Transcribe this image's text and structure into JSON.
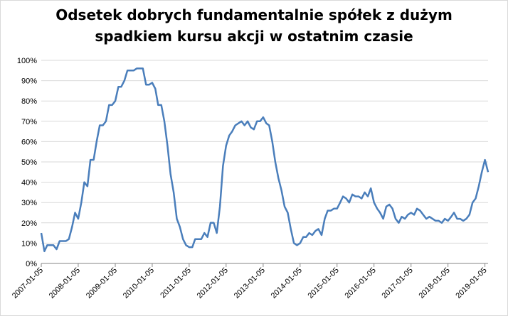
{
  "chart_data": {
    "type": "line",
    "title": [
      "Odsetek dobrych fundamentalnie spółek z dużym",
      "spadkiem kursu akcji w ostatnim czasie"
    ],
    "x": [
      "2007-01-05",
      "2007-02-05",
      "2007-03-05",
      "2007-05-05",
      "2007-06-05",
      "2007-07-05",
      "2007-09-05",
      "2007-10-05",
      "2007-11-05",
      "2007-12-05",
      "2008-01-05",
      "2008-02-05",
      "2008-03-05",
      "2008-04-05",
      "2008-05-05",
      "2008-06-05",
      "2008-07-05",
      "2008-08-05",
      "2008-09-05",
      "2008-10-05",
      "2008-11-05",
      "2008-12-05",
      "2009-01-05",
      "2009-02-05",
      "2009-03-05",
      "2009-04-05",
      "2009-05-05",
      "2009-06-05",
      "2009-07-05",
      "2009-08-05",
      "2009-09-05",
      "2009-10-05",
      "2009-11-05",
      "2009-12-05",
      "2010-01-05",
      "2010-02-05",
      "2010-03-05",
      "2010-04-05",
      "2010-05-05",
      "2010-06-05",
      "2010-07-05",
      "2010-08-05",
      "2010-09-05",
      "2010-10-05",
      "2010-11-05",
      "2010-12-05",
      "2011-01-05",
      "2011-02-05",
      "2011-03-05",
      "2011-04-05",
      "2011-05-05",
      "2011-06-05",
      "2011-07-05",
      "2011-08-05",
      "2011-09-05",
      "2011-10-05",
      "2011-11-05",
      "2011-12-05",
      "2012-01-05",
      "2012-02-05",
      "2012-03-05",
      "2012-04-05",
      "2012-05-05",
      "2012-06-05",
      "2012-07-05",
      "2012-08-05",
      "2012-09-05",
      "2012-10-05",
      "2012-11-05",
      "2012-12-05",
      "2013-01-05",
      "2013-02-05",
      "2013-03-05",
      "2013-04-05",
      "2013-05-05",
      "2013-06-05",
      "2013-07-05",
      "2013-08-05",
      "2013-09-05",
      "2013-10-05",
      "2013-11-05",
      "2013-12-05",
      "2014-01-05",
      "2014-02-05",
      "2014-03-05",
      "2014-04-05",
      "2014-05-05",
      "2014-06-05",
      "2014-07-05",
      "2014-08-05",
      "2014-09-05",
      "2014-10-05",
      "2014-11-05",
      "2014-12-05",
      "2015-01-05",
      "2015-02-05",
      "2015-03-05",
      "2015-04-05",
      "2015-05-05",
      "2015-06-05",
      "2015-07-05",
      "2015-08-05",
      "2015-09-05",
      "2015-10-05",
      "2015-11-05",
      "2015-12-05",
      "2016-01-05",
      "2016-02-05",
      "2016-03-05",
      "2016-04-05",
      "2016-05-05",
      "2016-06-05",
      "2016-07-05",
      "2016-08-05",
      "2016-09-05",
      "2016-10-05",
      "2016-11-05",
      "2016-12-05",
      "2017-01-05",
      "2017-02-05",
      "2017-03-05",
      "2017-04-05",
      "2017-05-05",
      "2017-06-05",
      "2017-07-05",
      "2017-08-05",
      "2017-09-05",
      "2017-10-05",
      "2017-11-05",
      "2017-12-05",
      "2018-01-05",
      "2018-02-05",
      "2018-03-05",
      "2018-04-05",
      "2018-05-05",
      "2018-06-05",
      "2018-07-05",
      "2018-08-05",
      "2018-09-05",
      "2018-10-05",
      "2018-11-05",
      "2018-12-05",
      "2019-01-05",
      "2019-02-05"
    ],
    "series": [
      {
        "name": "Odsetek",
        "color": "#4a7ebb",
        "values": [
          15,
          6,
          9,
          9,
          7,
          11,
          11,
          12,
          18,
          25,
          22,
          30,
          40,
          38,
          51,
          51,
          60,
          68,
          68,
          70,
          78,
          78,
          80,
          87,
          87,
          90,
          95,
          95,
          95,
          96,
          96,
          96,
          88,
          88,
          89,
          86,
          78,
          78,
          70,
          58,
          44,
          35,
          22,
          18,
          12,
          9,
          8,
          8,
          12,
          12,
          12,
          15,
          13,
          20,
          20,
          15,
          28,
          48,
          58,
          63,
          65,
          68,
          69,
          70,
          68,
          70,
          67,
          66,
          70,
          70,
          72,
          69,
          68,
          60,
          50,
          42,
          36,
          28,
          25,
          17,
          10,
          9,
          10,
          13,
          13,
          15,
          14,
          16,
          17,
          14,
          22,
          26,
          26,
          27,
          27,
          30,
          33,
          32,
          30,
          34,
          33,
          33,
          32,
          35,
          33,
          37,
          30,
          27,
          25,
          22,
          28,
          29,
          27,
          22,
          20,
          23,
          22,
          24,
          25,
          24,
          27,
          26,
          24,
          22,
          23,
          22,
          21,
          21,
          20,
          22,
          21,
          23,
          25,
          22,
          22,
          21,
          22,
          24,
          30,
          32,
          38,
          45,
          51,
          45
        ]
      }
    ],
    "xlim": [
      "2007-01-05",
      "2019-02-05"
    ],
    "xticks": [
      "2007-01-05",
      "2008-01-05",
      "2009-01-05",
      "2010-01-05",
      "2011-01-05",
      "2012-01-05",
      "2013-01-05",
      "2014-01-05",
      "2015-01-05",
      "2016-01-05",
      "2017-01-05",
      "2018-01-05",
      "2019-01-05"
    ],
    "ylim": [
      0,
      100
    ],
    "yticks": [
      {
        "value": 0,
        "label": "0%"
      },
      {
        "value": 10,
        "label": "10%"
      },
      {
        "value": 20,
        "label": "20%"
      },
      {
        "value": 30,
        "label": "30%"
      },
      {
        "value": 40,
        "label": "40%"
      },
      {
        "value": 50,
        "label": "50%"
      },
      {
        "value": 60,
        "label": "60%"
      },
      {
        "value": 70,
        "label": "70%"
      },
      {
        "value": 80,
        "label": "80%"
      },
      {
        "value": 90,
        "label": "90%"
      },
      {
        "value": 100,
        "label": "100%"
      }
    ],
    "grid": true
  }
}
